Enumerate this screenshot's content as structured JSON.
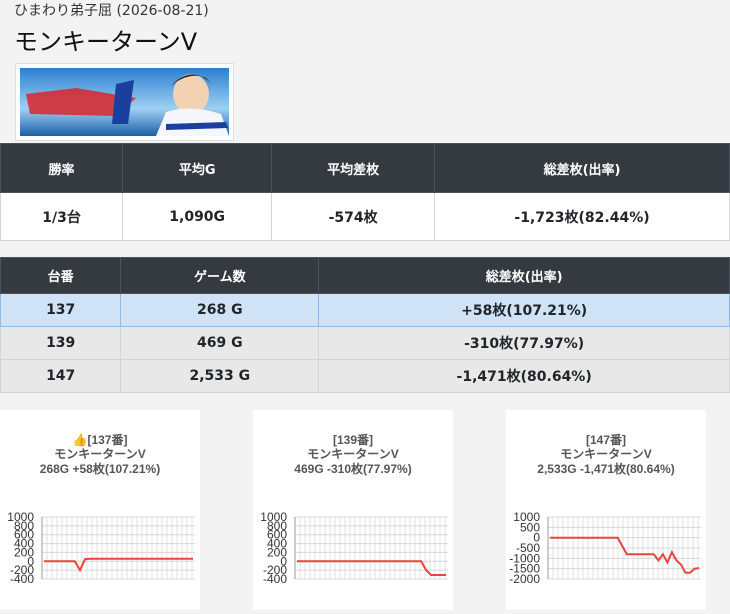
{
  "header": {
    "store": "ひまわり弟子屈 (2026-08-21)",
    "title": "モンキーターンV"
  },
  "summary": {
    "headers": [
      "勝率",
      "平均G",
      "平均差枚",
      "総差枚(出率)"
    ],
    "rows": [
      [
        "1/3台",
        "1,090G",
        "-574枚",
        "-1,723枚(82.44%)"
      ]
    ]
  },
  "machines": {
    "headers": [
      "台番",
      "ゲーム数",
      "総差枚(出率)"
    ],
    "rows": [
      [
        "137",
        "268 G",
        "+58枚(107.21%)"
      ],
      [
        "139",
        "469 G",
        "-310枚(77.97%)"
      ],
      [
        "147",
        "2,533 G",
        "-1,471枚(80.64%)"
      ]
    ]
  },
  "chart_data": [
    {
      "type": "line",
      "title": "👍[137番]",
      "subtitle": "モンキーターンV",
      "annotation": "268G +58枚(107.21%)",
      "ylim": [
        -400,
        1000
      ],
      "yticks": [
        1000,
        800,
        600,
        400,
        200,
        0,
        -200,
        -400
      ],
      "grid": true,
      "series": [
        {
          "name": "137",
          "color": "#e8433f",
          "values": [
            0,
            0,
            0,
            0,
            0,
            0,
            0,
            -200,
            50,
            58,
            58,
            58,
            58,
            58,
            58,
            58,
            58,
            58,
            58,
            58,
            58,
            58,
            58,
            58,
            58,
            58,
            58,
            58,
            58,
            58
          ]
        }
      ]
    },
    {
      "type": "line",
      "title": "[139番]",
      "subtitle": "モンキーターンV",
      "annotation": "469G -310枚(77.97%)",
      "ylim": [
        -400,
        1000
      ],
      "yticks": [
        1000,
        800,
        600,
        400,
        200,
        0,
        -200,
        -400
      ],
      "grid": true,
      "series": [
        {
          "name": "139",
          "color": "#e8433f",
          "values": [
            0,
            0,
            0,
            0,
            0,
            0,
            0,
            0,
            0,
            0,
            0,
            0,
            0,
            0,
            0,
            0,
            0,
            0,
            0,
            0,
            0,
            0,
            0,
            0,
            0,
            0,
            -200,
            -310,
            -310,
            -310,
            -310
          ]
        }
      ]
    },
    {
      "type": "line",
      "title": "[147番]",
      "subtitle": "モンキーターンV",
      "annotation": "2,533G -1,471枚(80.64%)",
      "ylim": [
        -2000,
        1000
      ],
      "yticks": [
        1000,
        500,
        0,
        -500,
        -1000,
        -1500,
        -2000
      ],
      "grid": true,
      "series": [
        {
          "name": "147",
          "color": "#e8433f",
          "values": [
            0,
            0,
            0,
            0,
            0,
            0,
            0,
            0,
            0,
            0,
            0,
            0,
            0,
            0,
            0,
            0,
            -400,
            -800,
            -800,
            -800,
            -800,
            -800,
            -800,
            -800,
            -1100,
            -800,
            -1200,
            -700,
            -1100,
            -1300,
            -1700,
            -1700,
            -1500,
            -1471
          ]
        }
      ]
    }
  ]
}
